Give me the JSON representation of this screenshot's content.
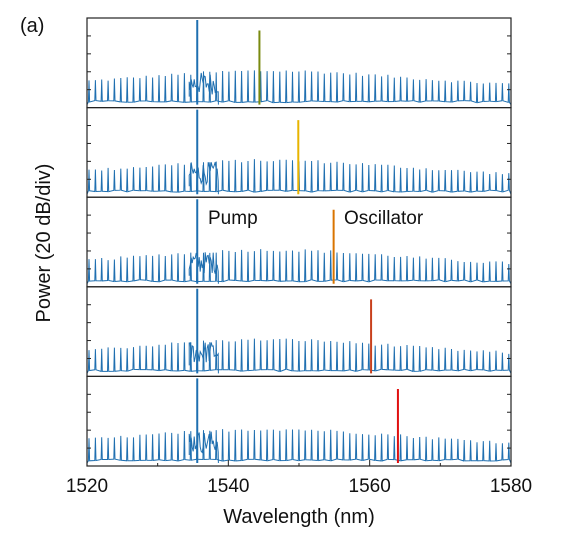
{
  "chart_data": {
    "type": "line",
    "panel_tag": "(a)",
    "xlabel": "Wavelength (nm)",
    "ylabel": "Power (20 dB/div)",
    "xlim": [
      1520,
      1580
    ],
    "xticks": [
      1520,
      1540,
      1560,
      1580
    ],
    "comb": {
      "color": "#1f6fb0",
      "line_spacing_nm": 0.9,
      "pump_nm": 1535.6,
      "noise_floor_end_nm": 1538.6
    },
    "annotations": [
      {
        "text": "Pump",
        "x_nm": 1535.6
      },
      {
        "text": "Oscillator",
        "x_nm": 1554.9
      }
    ],
    "series": [
      {
        "oscillator_nm": 1544.4,
        "oscillator_color": "#7a8a10"
      },
      {
        "oscillator_nm": 1549.9,
        "oscillator_color": "#e8b400"
      },
      {
        "oscillator_nm": 1554.9,
        "oscillator_color": "#d97400"
      },
      {
        "oscillator_nm": 1560.2,
        "oscillator_color": "#c8401c"
      },
      {
        "oscillator_nm": 1564.0,
        "oscillator_color": "#e01010"
      }
    ]
  }
}
